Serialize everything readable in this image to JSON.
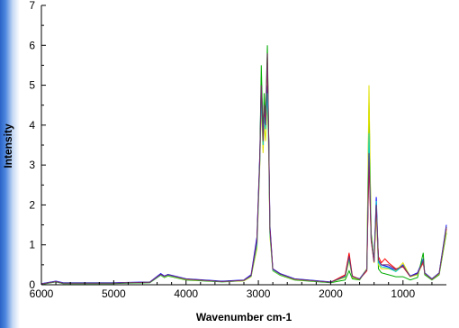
{
  "chart_data": {
    "type": "line",
    "title": "",
    "xlabel": "Wavenumber cm-1",
    "ylabel": "Intensity",
    "xlim": [
      6000,
      400
    ],
    "ylim": [
      0,
      7
    ],
    "x_ticks": [
      6000,
      5000,
      4000,
      3000,
      2000,
      1000
    ],
    "x_tick_labels": [
      "6000",
      "5000",
      "4000",
      "3000",
      "2000",
      "1000"
    ],
    "y_ticks": [
      0,
      1,
      2,
      3,
      4,
      5,
      6,
      7
    ],
    "y_tick_labels": [
      "0",
      "1",
      "2",
      "3",
      "4",
      "5",
      "6",
      "7"
    ],
    "grid": false,
    "legend": "none",
    "series": [
      {
        "color": "#0000ff",
        "points": [
          [
            6000,
            0.03
          ],
          [
            5800,
            0.09
          ],
          [
            5700,
            0.05
          ],
          [
            5000,
            0.05
          ],
          [
            4500,
            0.07
          ],
          [
            4350,
            0.28
          ],
          [
            4300,
            0.22
          ],
          [
            4250,
            0.26
          ],
          [
            4000,
            0.15
          ],
          [
            3500,
            0.09
          ],
          [
            3200,
            0.12
          ],
          [
            3100,
            0.25
          ],
          [
            3020,
            1.2
          ],
          [
            2980,
            3.3
          ],
          [
            2960,
            5.2
          ],
          [
            2935,
            3.8
          ],
          [
            2920,
            4.6
          ],
          [
            2900,
            4.1
          ],
          [
            2875,
            5.0
          ],
          [
            2855,
            3.6
          ],
          [
            2840,
            1.5
          ],
          [
            2800,
            0.4
          ],
          [
            2700,
            0.28
          ],
          [
            2500,
            0.15
          ],
          [
            2000,
            0.07
          ],
          [
            1800,
            0.2
          ],
          [
            1745,
            0.7
          ],
          [
            1700,
            0.2
          ],
          [
            1600,
            0.15
          ],
          [
            1500,
            0.4
          ],
          [
            1470,
            3.4
          ],
          [
            1440,
            1.2
          ],
          [
            1400,
            0.6
          ],
          [
            1370,
            2.2
          ],
          [
            1340,
            0.6
          ],
          [
            1300,
            0.5
          ],
          [
            1200,
            0.45
          ],
          [
            1100,
            0.35
          ],
          [
            1000,
            0.5
          ],
          [
            900,
            0.22
          ],
          [
            800,
            0.3
          ],
          [
            720,
            0.65
          ],
          [
            700,
            0.3
          ],
          [
            600,
            0.15
          ],
          [
            500,
            0.3
          ],
          [
            400,
            1.5
          ]
        ]
      },
      {
        "color": "#ff0000",
        "points": [
          [
            6000,
            0.02
          ],
          [
            5800,
            0.08
          ],
          [
            5700,
            0.04
          ],
          [
            5000,
            0.04
          ],
          [
            4500,
            0.06
          ],
          [
            4350,
            0.26
          ],
          [
            4300,
            0.2
          ],
          [
            4250,
            0.24
          ],
          [
            4000,
            0.14
          ],
          [
            3500,
            0.08
          ],
          [
            3200,
            0.11
          ],
          [
            3100,
            0.22
          ],
          [
            3020,
            1.1
          ],
          [
            2980,
            3.1
          ],
          [
            2960,
            4.9
          ],
          [
            2935,
            3.6
          ],
          [
            2920,
            4.4
          ],
          [
            2900,
            4.0
          ],
          [
            2875,
            5.7
          ],
          [
            2855,
            3.4
          ],
          [
            2840,
            1.4
          ],
          [
            2800,
            0.38
          ],
          [
            2700,
            0.26
          ],
          [
            2500,
            0.13
          ],
          [
            2000,
            0.06
          ],
          [
            1800,
            0.25
          ],
          [
            1745,
            0.8
          ],
          [
            1700,
            0.22
          ],
          [
            1600,
            0.14
          ],
          [
            1500,
            0.35
          ],
          [
            1470,
            3.1
          ],
          [
            1440,
            1.1
          ],
          [
            1400,
            0.55
          ],
          [
            1370,
            1.9
          ],
          [
            1340,
            0.7
          ],
          [
            1300,
            0.55
          ],
          [
            1250,
            0.65
          ],
          [
            1200,
            0.55
          ],
          [
            1100,
            0.4
          ],
          [
            1000,
            0.45
          ],
          [
            900,
            0.2
          ],
          [
            800,
            0.28
          ],
          [
            720,
            0.55
          ],
          [
            700,
            0.28
          ],
          [
            600,
            0.14
          ],
          [
            500,
            0.28
          ],
          [
            400,
            1.4
          ]
        ]
      },
      {
        "color": "#00aa00",
        "points": [
          [
            6000,
            0.01
          ],
          [
            5800,
            0.07
          ],
          [
            5700,
            0.03
          ],
          [
            5000,
            0.03
          ],
          [
            4500,
            0.05
          ],
          [
            4350,
            0.24
          ],
          [
            4300,
            0.18
          ],
          [
            4250,
            0.22
          ],
          [
            4000,
            0.12
          ],
          [
            3500,
            0.07
          ],
          [
            3200,
            0.1
          ],
          [
            3100,
            0.2
          ],
          [
            3020,
            1.0
          ],
          [
            2980,
            3.2
          ],
          [
            2960,
            5.5
          ],
          [
            2935,
            3.7
          ],
          [
            2920,
            4.8
          ],
          [
            2900,
            4.2
          ],
          [
            2875,
            6.0
          ],
          [
            2855,
            3.5
          ],
          [
            2840,
            1.3
          ],
          [
            2800,
            0.35
          ],
          [
            2700,
            0.24
          ],
          [
            2500,
            0.12
          ],
          [
            2000,
            0.05
          ],
          [
            1800,
            0.12
          ],
          [
            1745,
            0.35
          ],
          [
            1700,
            0.15
          ],
          [
            1600,
            0.12
          ],
          [
            1500,
            0.4
          ],
          [
            1470,
            4.6
          ],
          [
            1440,
            1.3
          ],
          [
            1400,
            0.6
          ],
          [
            1370,
            2.0
          ],
          [
            1340,
            0.4
          ],
          [
            1300,
            0.3
          ],
          [
            1200,
            0.25
          ],
          [
            1100,
            0.2
          ],
          [
            1000,
            0.2
          ],
          [
            900,
            0.12
          ],
          [
            800,
            0.18
          ],
          [
            720,
            0.8
          ],
          [
            700,
            0.25
          ],
          [
            600,
            0.12
          ],
          [
            500,
            0.25
          ],
          [
            400,
            1.3
          ]
        ]
      },
      {
        "color": "#e0e000",
        "points": [
          [
            6000,
            0.02
          ],
          [
            5800,
            0.08
          ],
          [
            5700,
            0.04
          ],
          [
            5000,
            0.04
          ],
          [
            4500,
            0.06
          ],
          [
            4350,
            0.25
          ],
          [
            4300,
            0.19
          ],
          [
            4250,
            0.23
          ],
          [
            4000,
            0.13
          ],
          [
            3500,
            0.08
          ],
          [
            3200,
            0.1
          ],
          [
            3100,
            0.2
          ],
          [
            3020,
            0.9
          ],
          [
            2980,
            3.0
          ],
          [
            2960,
            4.5
          ],
          [
            2935,
            3.3
          ],
          [
            2920,
            4.0
          ],
          [
            2900,
            3.6
          ],
          [
            2875,
            4.6
          ],
          [
            2855,
            3.1
          ],
          [
            2840,
            1.2
          ],
          [
            2800,
            0.36
          ],
          [
            2700,
            0.25
          ],
          [
            2500,
            0.13
          ],
          [
            2000,
            0.06
          ],
          [
            1800,
            0.18
          ],
          [
            1745,
            0.6
          ],
          [
            1700,
            0.18
          ],
          [
            1600,
            0.13
          ],
          [
            1500,
            0.4
          ],
          [
            1470,
            5.0
          ],
          [
            1440,
            1.2
          ],
          [
            1400,
            0.55
          ],
          [
            1370,
            1.8
          ],
          [
            1340,
            0.5
          ],
          [
            1300,
            0.4
          ],
          [
            1200,
            0.4
          ],
          [
            1100,
            0.35
          ],
          [
            1000,
            0.55
          ],
          [
            900,
            0.2
          ],
          [
            800,
            0.25
          ],
          [
            720,
            0.6
          ],
          [
            700,
            0.28
          ],
          [
            600,
            0.13
          ],
          [
            500,
            0.27
          ],
          [
            400,
            1.35
          ]
        ]
      },
      {
        "color": "#00cccc",
        "points": [
          [
            6000,
            0.02
          ],
          [
            5800,
            0.08
          ],
          [
            5700,
            0.04
          ],
          [
            5000,
            0.04
          ],
          [
            4500,
            0.06
          ],
          [
            4350,
            0.25
          ],
          [
            4300,
            0.2
          ],
          [
            4250,
            0.24
          ],
          [
            4000,
            0.14
          ],
          [
            3500,
            0.08
          ],
          [
            3200,
            0.11
          ],
          [
            3100,
            0.22
          ],
          [
            3020,
            1.0
          ],
          [
            2980,
            3.1
          ],
          [
            2960,
            4.7
          ],
          [
            2935,
            3.5
          ],
          [
            2920,
            4.2
          ],
          [
            2900,
            3.9
          ],
          [
            2875,
            4.8
          ],
          [
            2855,
            3.3
          ],
          [
            2840,
            1.3
          ],
          [
            2800,
            0.37
          ],
          [
            2700,
            0.26
          ],
          [
            2500,
            0.14
          ],
          [
            2000,
            0.06
          ],
          [
            1800,
            0.2
          ],
          [
            1745,
            0.65
          ],
          [
            1700,
            0.2
          ],
          [
            1600,
            0.14
          ],
          [
            1500,
            0.38
          ],
          [
            1470,
            3.8
          ],
          [
            1440,
            1.15
          ],
          [
            1400,
            0.58
          ],
          [
            1370,
            2.1
          ],
          [
            1340,
            0.55
          ],
          [
            1300,
            0.45
          ],
          [
            1200,
            0.42
          ],
          [
            1100,
            0.33
          ],
          [
            1000,
            0.48
          ],
          [
            900,
            0.21
          ],
          [
            800,
            0.27
          ],
          [
            720,
            0.62
          ],
          [
            700,
            0.29
          ],
          [
            600,
            0.14
          ],
          [
            500,
            0.29
          ],
          [
            400,
            1.45
          ]
        ]
      },
      {
        "color": "#7a2a6a",
        "points": [
          [
            6000,
            0.02
          ],
          [
            5800,
            0.08
          ],
          [
            5700,
            0.04
          ],
          [
            5000,
            0.04
          ],
          [
            4500,
            0.06
          ],
          [
            4350,
            0.26
          ],
          [
            4300,
            0.21
          ],
          [
            4250,
            0.25
          ],
          [
            4000,
            0.14
          ],
          [
            3500,
            0.08
          ],
          [
            3200,
            0.11
          ],
          [
            3100,
            0.23
          ],
          [
            3020,
            1.1
          ],
          [
            2980,
            3.2
          ],
          [
            2960,
            5.0
          ],
          [
            2935,
            3.6
          ],
          [
            2920,
            4.5
          ],
          [
            2900,
            4.0
          ],
          [
            2875,
            5.8
          ],
          [
            2855,
            3.5
          ],
          [
            2840,
            1.4
          ],
          [
            2800,
            0.39
          ],
          [
            2700,
            0.27
          ],
          [
            2500,
            0.14
          ],
          [
            2000,
            0.06
          ],
          [
            1800,
            0.22
          ],
          [
            1745,
            0.72
          ],
          [
            1700,
            0.21
          ],
          [
            1600,
            0.14
          ],
          [
            1500,
            0.37
          ],
          [
            1470,
            3.3
          ],
          [
            1440,
            1.15
          ],
          [
            1400,
            0.57
          ],
          [
            1370,
            2.0
          ],
          [
            1340,
            0.62
          ],
          [
            1300,
            0.5
          ],
          [
            1200,
            0.5
          ],
          [
            1100,
            0.38
          ],
          [
            1000,
            0.47
          ],
          [
            900,
            0.21
          ],
          [
            800,
            0.28
          ],
          [
            720,
            0.6
          ],
          [
            700,
            0.29
          ],
          [
            600,
            0.14
          ],
          [
            500,
            0.29
          ],
          [
            400,
            1.45
          ]
        ]
      }
    ]
  }
}
